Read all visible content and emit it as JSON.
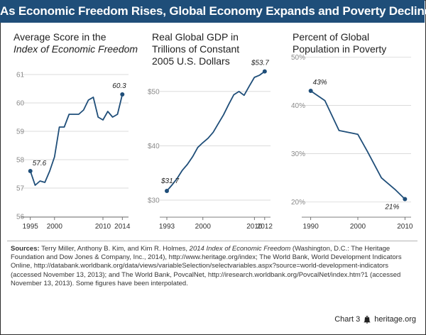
{
  "banner": {
    "title": "As Economic Freedom Rises, Global Economy Expands and Poverty Declines"
  },
  "colors": {
    "banner_bg": "#1f4e79",
    "line": "#1f4e79",
    "grid": "#cfcfcf"
  },
  "panels": [
    {
      "title_line1": "Average Score in the",
      "title_line2": "Index of Economic Freedom"
    },
    {
      "title_line1": "Real Global GDP in",
      "title_line2": "Trillions of Constant",
      "title_line3": "2005 U.S. Dollars"
    },
    {
      "title_line1": "Percent of Global",
      "title_line2": "Population in Poverty"
    }
  ],
  "chart_data": [
    {
      "type": "line",
      "x": [
        1995,
        1996,
        1997,
        1998,
        1999,
        2000,
        2001,
        2002,
        2003,
        2004,
        2005,
        2006,
        2007,
        2008,
        2009,
        2010,
        2011,
        2012,
        2013,
        2014
      ],
      "y": [
        57.6,
        57.1,
        57.25,
        57.2,
        57.6,
        58.1,
        59.15,
        59.15,
        59.6,
        59.6,
        59.6,
        59.75,
        60.1,
        60.2,
        59.5,
        59.4,
        59.7,
        59.5,
        59.6,
        60.3
      ],
      "ylim": [
        56,
        61
      ],
      "yticks": [
        "56",
        "57",
        "58",
        "59",
        "60",
        "61"
      ],
      "xticks": [
        "1995",
        "2000",
        "2010",
        "2014"
      ],
      "xtick_values": [
        1995,
        2000,
        2010,
        2014
      ],
      "labels": {
        "start": "57.6",
        "end": "60.3"
      }
    },
    {
      "type": "line",
      "x": [
        1993,
        1994,
        1995,
        1996,
        1997,
        1998,
        1999,
        2000,
        2001,
        2002,
        2003,
        2004,
        2005,
        2006,
        2007,
        2008,
        2009,
        2010,
        2011,
        2012
      ],
      "y": [
        31.7,
        32.8,
        34.0,
        35.5,
        36.6,
        38.0,
        39.7,
        40.6,
        41.4,
        42.5,
        44.1,
        45.7,
        47.6,
        49.4,
        50.0,
        49.3,
        51.0,
        52.6,
        53.0,
        53.7
      ],
      "ylim": [
        27,
        59
      ],
      "yticks": [
        "$30",
        "$40",
        "$50"
      ],
      "ytick_values": [
        30,
        40,
        50
      ],
      "xticks": [
        "1993",
        "2000",
        "2010",
        "2012"
      ],
      "xtick_values": [
        1993,
        2000,
        2010,
        2012
      ],
      "labels": {
        "start": "$31.7",
        "end": "$53.7"
      }
    },
    {
      "type": "line",
      "x": [
        1990,
        1993,
        1996,
        1999,
        2000,
        2002,
        2005,
        2008,
        2010
      ],
      "y": [
        43,
        41,
        34.8,
        34.2,
        34,
        30.5,
        25,
        22.5,
        20.6
      ],
      "ylim": [
        17,
        53
      ],
      "yticks": [
        "20%",
        "30%",
        "40%",
        "50%"
      ],
      "ytick_values": [
        20,
        30,
        40,
        50
      ],
      "xticks": [
        "1990",
        "2000",
        "2010"
      ],
      "xtick_values": [
        1990,
        2000,
        2010
      ],
      "labels": {
        "start": "43%",
        "end": "21%"
      }
    }
  ],
  "sources": {
    "label": "Sources:",
    "part1": " Terry Miller, Anthony B. Kim, and Kim R. Holmes, ",
    "book": "2014 Index of Economic Freedom",
    "part2": " (Washington, D.C.: The Heritage Foundation and Dow Jones & Company, Inc., 2014), http://www.heritage.org/index; The World Bank, World Development Indicators Online, http://databank.worldbank.org/data/views/variableSelection/selectvariables.aspx?source=world-development-indicators (accessed November 13, 2013); and The World Bank, PovcalNet, http://iresearch.worldbank.org/PovcalNet/index.htm?1 (accessed November 13, 2013). Some figures have been interpolated."
  },
  "footer": {
    "chart_number": "Chart 3",
    "site": "heritage.org"
  }
}
